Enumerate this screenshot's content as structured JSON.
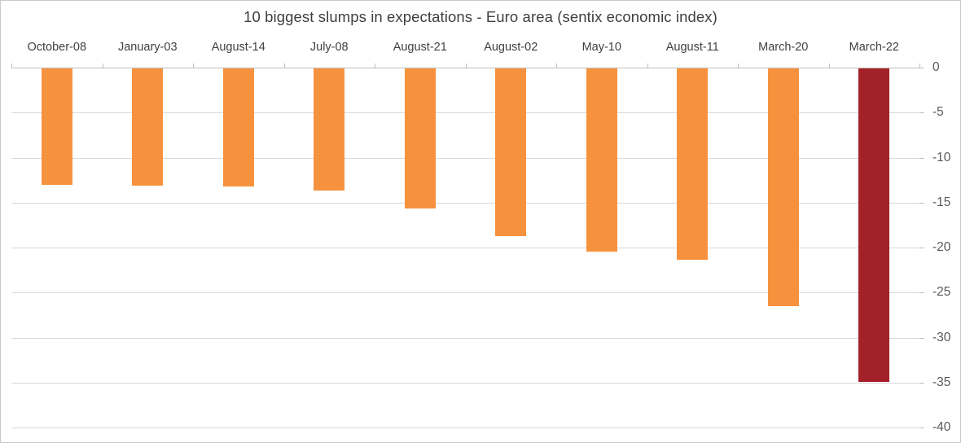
{
  "chart_data": {
    "type": "bar",
    "title": "10 biggest slumps in expectations - Euro area (sentix economic index)",
    "categories": [
      "October-08",
      "January-03",
      "August-14",
      "July-08",
      "August-21",
      "August-02",
      "May-10",
      "August-11",
      "March-20",
      "March-22"
    ],
    "values": [
      -12.9,
      -13.0,
      -13.1,
      -13.6,
      -15.6,
      -18.6,
      -20.4,
      -21.3,
      -26.4,
      -34.8
    ],
    "xlabel": "",
    "ylabel": "",
    "ylim": [
      -40,
      0
    ],
    "yticks": [
      0,
      -5,
      -10,
      -15,
      -20,
      -25,
      -30,
      -35,
      -40
    ],
    "grid": true,
    "legend": false,
    "category_labels_position": "top",
    "value_axis_position": "right",
    "bar_color": "#F6923E",
    "highlight_color": "#A32128",
    "highlight_category": "March-22",
    "gridline_color": "#D9D9D9",
    "axis_line_color": "#BFBFBF",
    "title_color": "#3F3F3F",
    "label_color": "#404040",
    "tick_label_color": "#595959"
  }
}
